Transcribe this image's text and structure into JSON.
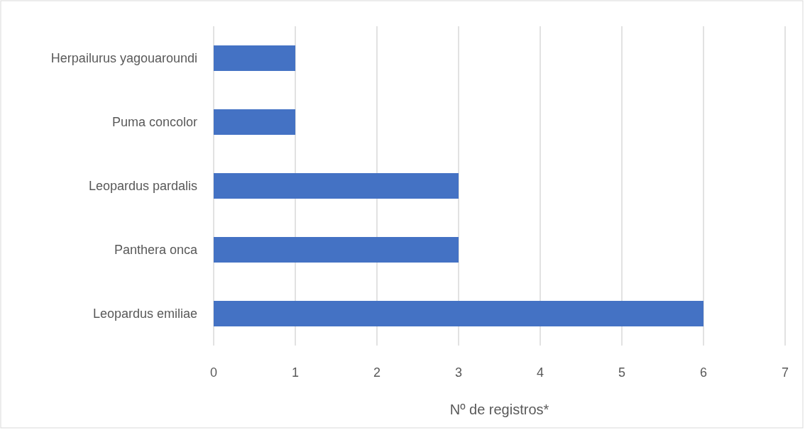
{
  "chart_data": {
    "type": "bar",
    "orientation": "horizontal",
    "categories": [
      "Herpailurus yagouaroundi",
      "Puma concolor",
      "Leopardus pardalis",
      "Panthera onca",
      "Leopardus emiliae"
    ],
    "values": [
      1,
      1,
      3,
      3,
      6
    ],
    "color": "#4472c4",
    "xlim": [
      0,
      7
    ],
    "xticks": [
      0,
      1,
      2,
      3,
      4,
      5,
      6,
      7
    ],
    "grid": "x",
    "xlabel": "Nº de registros*"
  }
}
